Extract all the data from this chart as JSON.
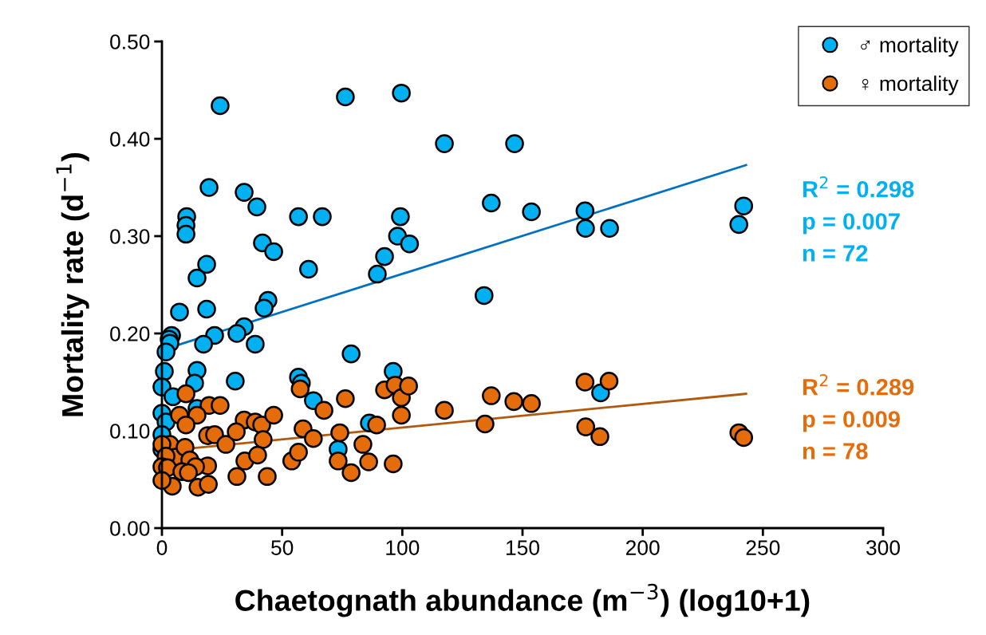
{
  "chart_data": {
    "type": "scatter",
    "xlabel": "Chaetognath abundance (m$^{−3}$) (log10+1)",
    "ylabel": "Mortality rate (d$^{−1}$)",
    "xlim": [
      0,
      300
    ],
    "xticks": [
      0,
      50,
      100,
      150,
      200,
      250,
      300
    ],
    "ylim": [
      0,
      0.5
    ],
    "yticks": [
      {
        "value": 0,
        "label": "0.00"
      },
      {
        "value": 0.1,
        "label": "0.10"
      },
      {
        "value": 0.2,
        "label": "0.20"
      },
      {
        "value": 0.3,
        "label": "0.30"
      },
      {
        "value": 0.4,
        "label": "0.40"
      },
      {
        "value": 0.5,
        "label": "0.50"
      }
    ],
    "grid": false,
    "legend": "top right",
    "series": [
      {
        "name": "♂ mortality",
        "color": "#00b0f0",
        "marker": "circle",
        "x": [
          24.2,
          76.3,
          99.6,
          117.5,
          146.7,
          19.6,
          34.2,
          39.5,
          56.8,
          66.7,
          10.3,
          10,
          10,
          41.8,
          46.5,
          18.6,
          14.6,
          61,
          99.2,
          98,
          103,
          92.6,
          89.6,
          137,
          153.7,
          176,
          176.2,
          186.2,
          242,
          240,
          134,
          18.6,
          7.3,
          44.1,
          42.5,
          34.2,
          31.2,
          21.9,
          17.3,
          38.8,
          4,
          3,
          3.3,
          1.7,
          78.7,
          1,
          0,
          14.6,
          13.6,
          30.5,
          56.8,
          58,
          63,
          96.2,
          182.5,
          4.6,
          14.6,
          0,
          1.7,
          0,
          86.3,
          73.3,
          0
        ],
        "values": [
          0.434,
          0.443,
          0.447,
          0.395,
          0.395,
          0.35,
          0.345,
          0.33,
          0.32,
          0.32,
          0.32,
          0.311,
          0.302,
          0.293,
          0.284,
          0.271,
          0.257,
          0.266,
          0.32,
          0.3,
          0.292,
          0.279,
          0.261,
          0.334,
          0.325,
          0.326,
          0.308,
          0.308,
          0.331,
          0.312,
          0.239,
          0.225,
          0.222,
          0.234,
          0.226,
          0.207,
          0.2,
          0.198,
          0.189,
          0.189,
          0.198,
          0.194,
          0.19,
          0.181,
          0.179,
          0.161,
          0.145,
          0.162,
          0.149,
          0.151,
          0.155,
          0.149,
          0.131,
          0.161,
          0.139,
          0.135,
          0.123,
          0.118,
          0.109,
          0.096,
          0.108,
          0.081,
          0.081
        ]
      },
      {
        "name": "♀ mortality",
        "color": "#e46c0a",
        "marker": "circle",
        "x": [
          10,
          19.6,
          24.2,
          7.3,
          14.6,
          34.2,
          38.8,
          41.5,
          46.5,
          67.4,
          76.3,
          57.5,
          10,
          19,
          21.9,
          26.6,
          30.9,
          42.1,
          58.7,
          63,
          74,
          3.3,
          5.6,
          0,
          1.7,
          0,
          2.3,
          9.6,
          11.6,
          19,
          14,
          8.3,
          11,
          4.3,
          0,
          15,
          19.3,
          31.2,
          34.5,
          39.8,
          43.8,
          54,
          56.8,
          73.3,
          78.7,
          83.6,
          86,
          89.3,
          92.6,
          97,
          99.6,
          99.6,
          102.6,
          96.2,
          117.5,
          137,
          146.4,
          153.7,
          134.4,
          176,
          186,
          176.3,
          182.2,
          240,
          242
        ],
        "values": [
          0.138,
          0.126,
          0.126,
          0.116,
          0.116,
          0.111,
          0.109,
          0.106,
          0.116,
          0.121,
          0.133,
          0.143,
          0.106,
          0.095,
          0.096,
          0.086,
          0.099,
          0.091,
          0.102,
          0.092,
          0.098,
          0.086,
          0.073,
          0.086,
          0.074,
          0.063,
          0.062,
          0.083,
          0.07,
          0.064,
          0.063,
          0.058,
          0.057,
          0.043,
          0.049,
          0.042,
          0.045,
          0.053,
          0.069,
          0.075,
          0.053,
          0.069,
          0.078,
          0.069,
          0.057,
          0.086,
          0.068,
          0.106,
          0.142,
          0.147,
          0.134,
          0.116,
          0.146,
          0.066,
          0.121,
          0.136,
          0.13,
          0.128,
          0.107,
          0.15,
          0.151,
          0.104,
          0.094,
          0.098,
          0.093
        ]
      },
      {
        "type": "line",
        "color": "#0070c0",
        "marker": "none",
        "x": [
          0,
          243
        ],
        "values": [
          0.183,
          0.373
        ]
      },
      {
        "type": "line",
        "color": "#b05a10",
        "marker": "none",
        "x": [
          0,
          243
        ],
        "values": [
          0.079,
          0.138
        ]
      }
    ],
    "annotations": [
      "R$^{2}$ = 0.298",
      "p = 0.007",
      "n = 72",
      "R$^{2}$ = 0.289",
      "p = 0.009",
      "n = 78"
    ]
  }
}
